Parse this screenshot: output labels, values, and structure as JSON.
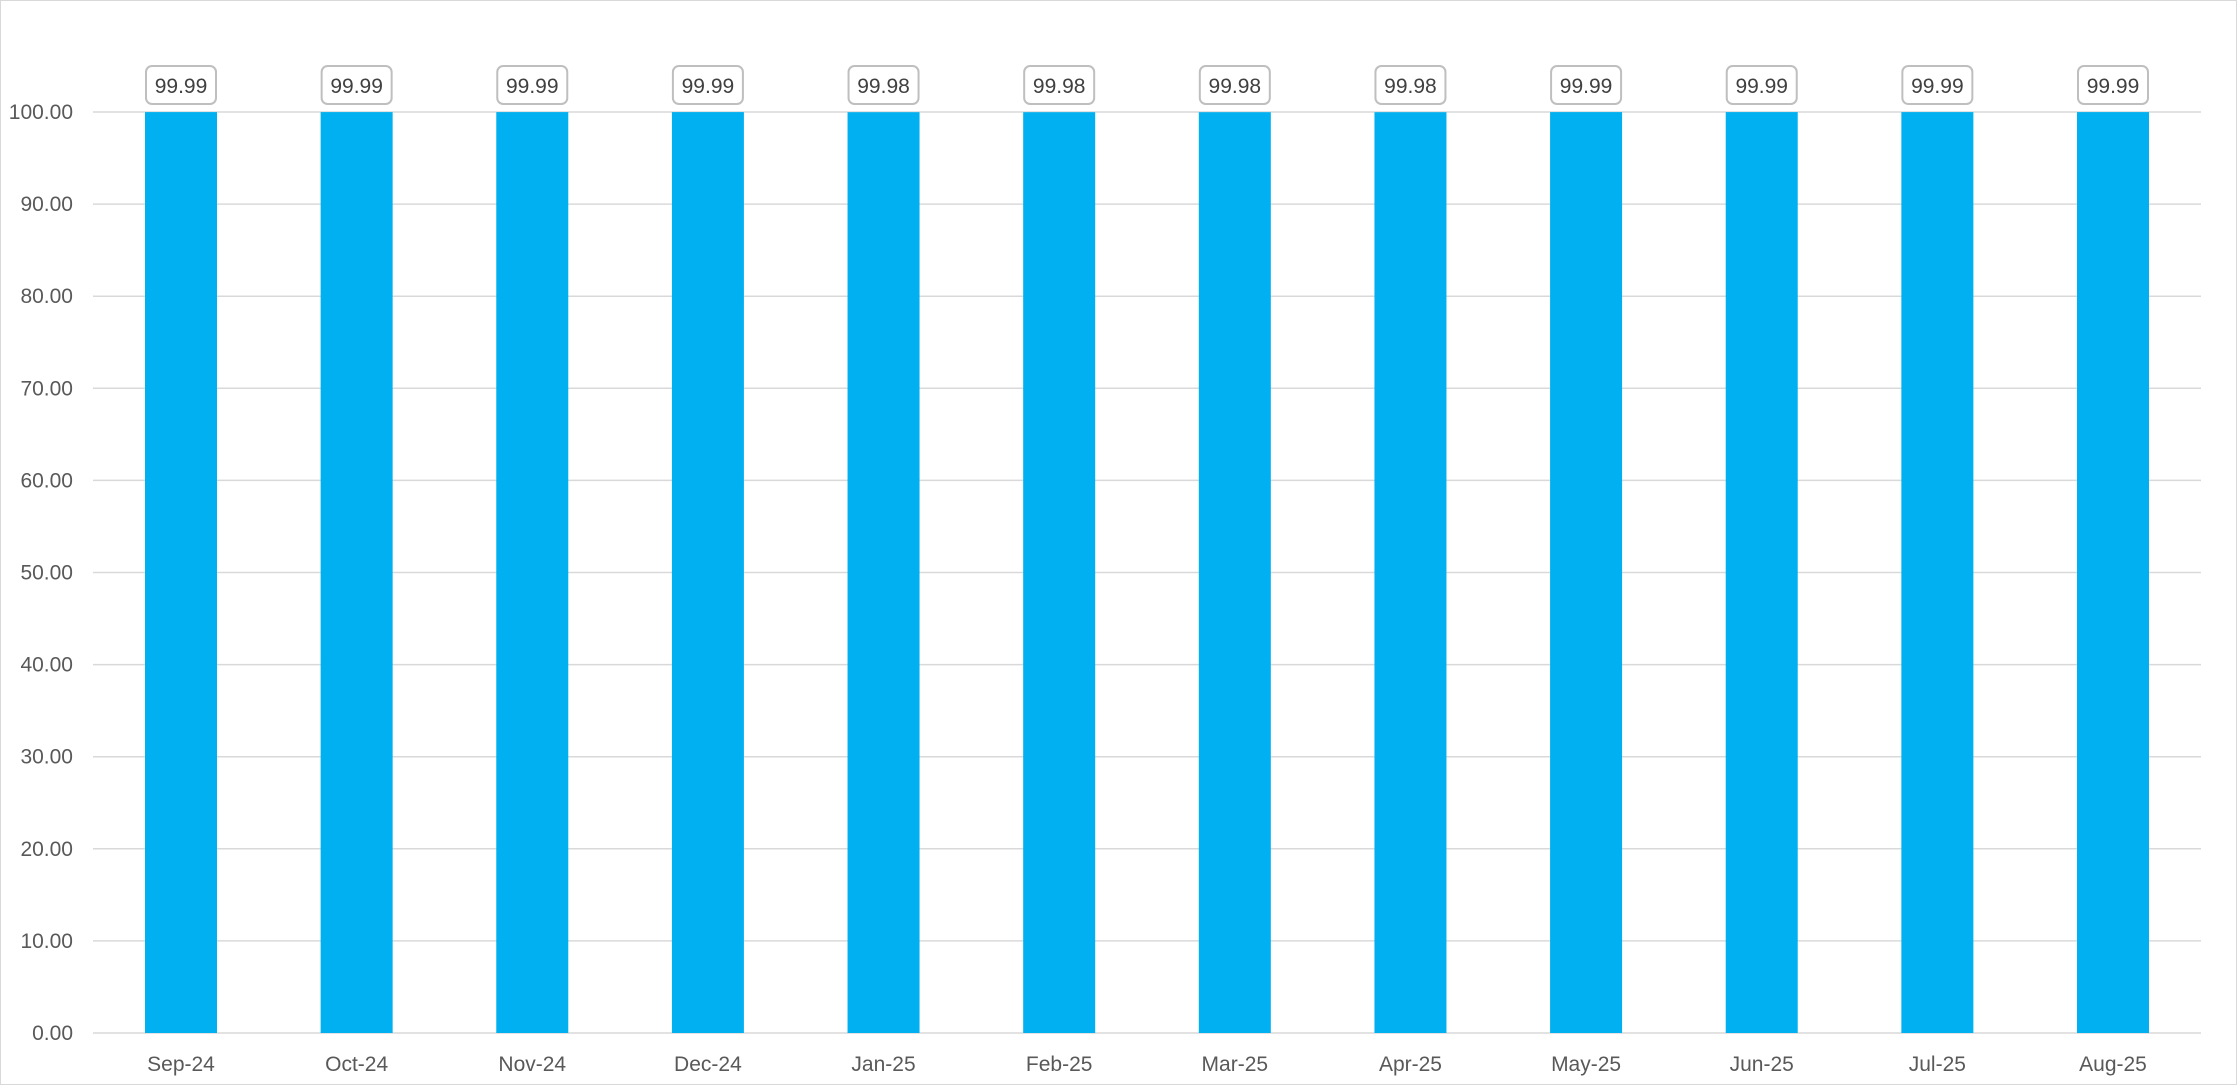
{
  "chart_data": {
    "type": "bar",
    "title": "",
    "xlabel": "",
    "ylabel": "",
    "categories": [
      "Sep-24",
      "Oct-24",
      "Nov-24",
      "Dec-24",
      "Jan-25",
      "Feb-25",
      "Mar-25",
      "Apr-25",
      "May-25",
      "Jun-25",
      "Jul-25",
      "Aug-25"
    ],
    "values": [
      99.99,
      99.99,
      99.99,
      99.99,
      99.98,
      99.98,
      99.98,
      99.98,
      99.99,
      99.99,
      99.99,
      99.99
    ],
    "data_labels": [
      "99.99",
      "99.99",
      "99.99",
      "99.99",
      "99.98",
      "99.98",
      "99.98",
      "99.98",
      "99.99",
      "99.99",
      "99.99",
      "99.99"
    ],
    "ylim": [
      0,
      100
    ],
    "y_ticks": [
      "0.00",
      "10.00",
      "20.00",
      "30.00",
      "40.00",
      "50.00",
      "60.00",
      "70.00",
      "80.00",
      "90.00",
      "100.00"
    ],
    "grid": true,
    "legend": "none",
    "colors": {
      "bar": "#00B0F0",
      "grid": "#d9d9d9",
      "label_box_border": "#bfbfbf",
      "text": "#595959"
    }
  }
}
